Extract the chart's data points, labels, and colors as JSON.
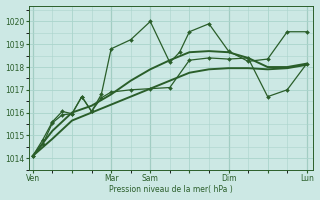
{
  "bg_color": "#cce8e4",
  "grid_color": "#aad4cc",
  "line_color": "#2a5e2a",
  "text_color": "#2a5e2a",
  "xlabel": "Pression niveau de la mer( hPa )",
  "ylim": [
    1013.5,
    1020.7
  ],
  "yticks": [
    1014,
    1015,
    1016,
    1017,
    1018,
    1019,
    1020
  ],
  "xlim": [
    -0.2,
    14.3
  ],
  "xtick_labels": [
    "Ven",
    "",
    "Mar",
    "Sam",
    "",
    "Dim",
    "",
    "Lun"
  ],
  "xtick_positions": [
    0,
    2,
    4,
    6,
    8,
    10,
    12,
    14
  ],
  "series": [
    {
      "name": "dotted_high",
      "x": [
        0,
        0.5,
        1,
        1.5,
        2,
        2.5,
        3,
        3.5,
        4,
        5,
        6,
        7,
        7.5,
        8,
        9,
        10,
        11,
        12,
        13,
        14
      ],
      "y": [
        1014.1,
        1014.8,
        1015.6,
        1016.05,
        1015.95,
        1016.7,
        1016.05,
        1016.8,
        1018.8,
        1019.2,
        1020.0,
        1018.2,
        1018.65,
        1019.55,
        1019.9,
        1018.7,
        1018.25,
        1018.35,
        1019.55,
        1019.55
      ],
      "marker": "D",
      "lw": 0.9,
      "ms": 2.0
    },
    {
      "name": "dotted_mid",
      "x": [
        0,
        0.5,
        1,
        1.5,
        2,
        2.5,
        3,
        3.5,
        4,
        5,
        6,
        7,
        8,
        9,
        10,
        11,
        12,
        13,
        14
      ],
      "y": [
        1014.1,
        1014.6,
        1015.55,
        1015.9,
        1015.95,
        1016.7,
        1016.05,
        1016.65,
        1016.9,
        1017.0,
        1017.05,
        1017.1,
        1018.3,
        1018.4,
        1018.35,
        1018.4,
        1016.7,
        1017.0,
        1018.15
      ],
      "marker": "D",
      "lw": 0.9,
      "ms": 2.0
    },
    {
      "name": "smooth_upper",
      "x": [
        0,
        1,
        2,
        3,
        4,
        5,
        6,
        7,
        8,
        9,
        10,
        11,
        12,
        13,
        14
      ],
      "y": [
        1014.1,
        1015.2,
        1016.0,
        1016.3,
        1016.8,
        1017.4,
        1017.9,
        1018.3,
        1018.65,
        1018.7,
        1018.65,
        1018.4,
        1018.0,
        1018.0,
        1018.15
      ],
      "marker": null,
      "lw": 1.4,
      "ms": 0
    },
    {
      "name": "smooth_lower",
      "x": [
        0,
        1,
        2,
        3,
        4,
        5,
        6,
        7,
        8,
        9,
        10,
        11,
        12,
        13,
        14
      ],
      "y": [
        1014.1,
        1014.85,
        1015.65,
        1016.0,
        1016.35,
        1016.7,
        1017.05,
        1017.4,
        1017.75,
        1017.9,
        1017.95,
        1017.95,
        1017.9,
        1017.95,
        1018.1
      ],
      "marker": null,
      "lw": 1.4,
      "ms": 0
    }
  ]
}
